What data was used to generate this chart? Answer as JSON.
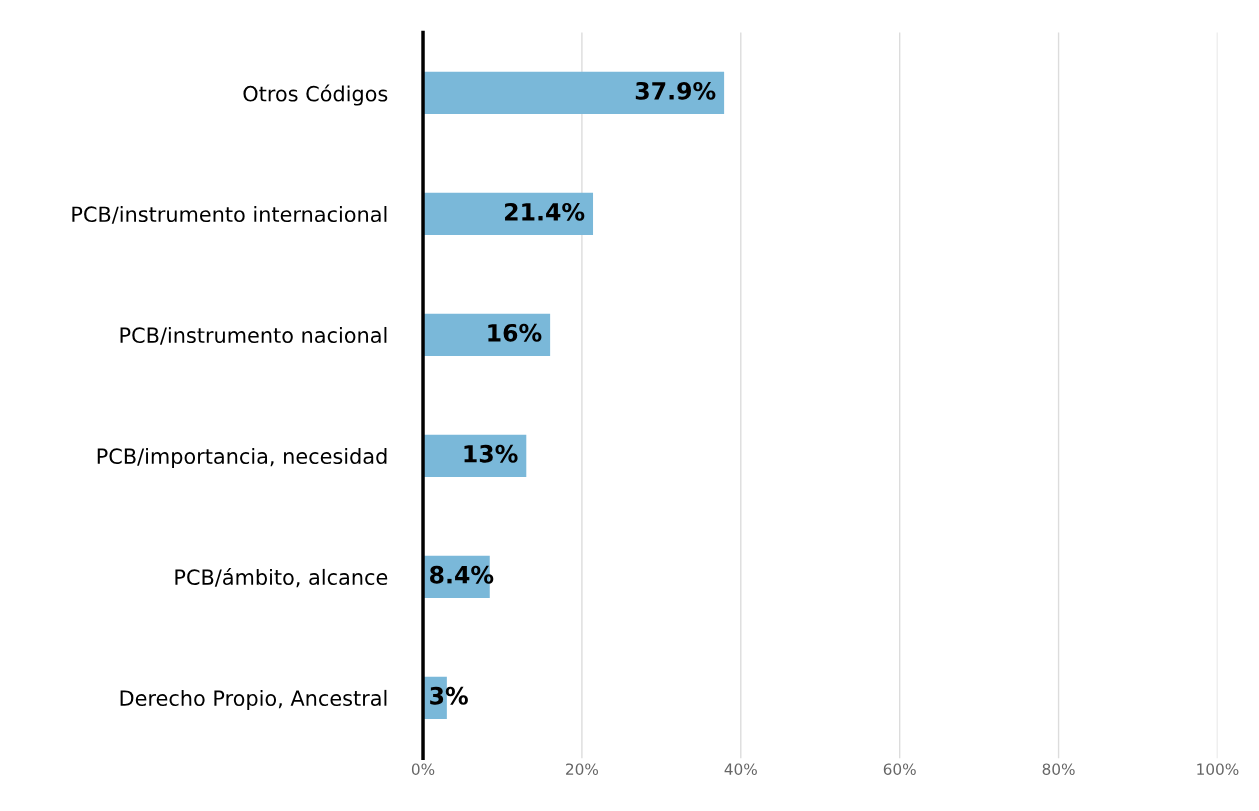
{
  "chart_data": {
    "type": "bar",
    "orientation": "horizontal",
    "categories": [
      "Otros Códigos",
      "PCB/instrumento internacional",
      "PCB/instrumento nacional",
      "PCB/importancia, necesidad",
      "PCB/ámbito, alcance",
      "Derecho Propio, Ancestral"
    ],
    "values": [
      37.9,
      21.4,
      16,
      13,
      8.4,
      3
    ],
    "value_labels": [
      "37.9%",
      "21.4%",
      "16%",
      "13%",
      "8.4%",
      "3%"
    ],
    "color": "#7ab8d9",
    "xlim": [
      0,
      100
    ],
    "xticks": [
      {
        "value": 0,
        "label": "0%"
      },
      {
        "value": 20,
        "label": "20%"
      },
      {
        "value": 40,
        "label": "40%"
      },
      {
        "value": 60,
        "label": "60%"
      },
      {
        "value": 80,
        "label": "80%"
      },
      {
        "value": 100,
        "label": "100%"
      }
    ],
    "grid": "x",
    "legend": false
  }
}
